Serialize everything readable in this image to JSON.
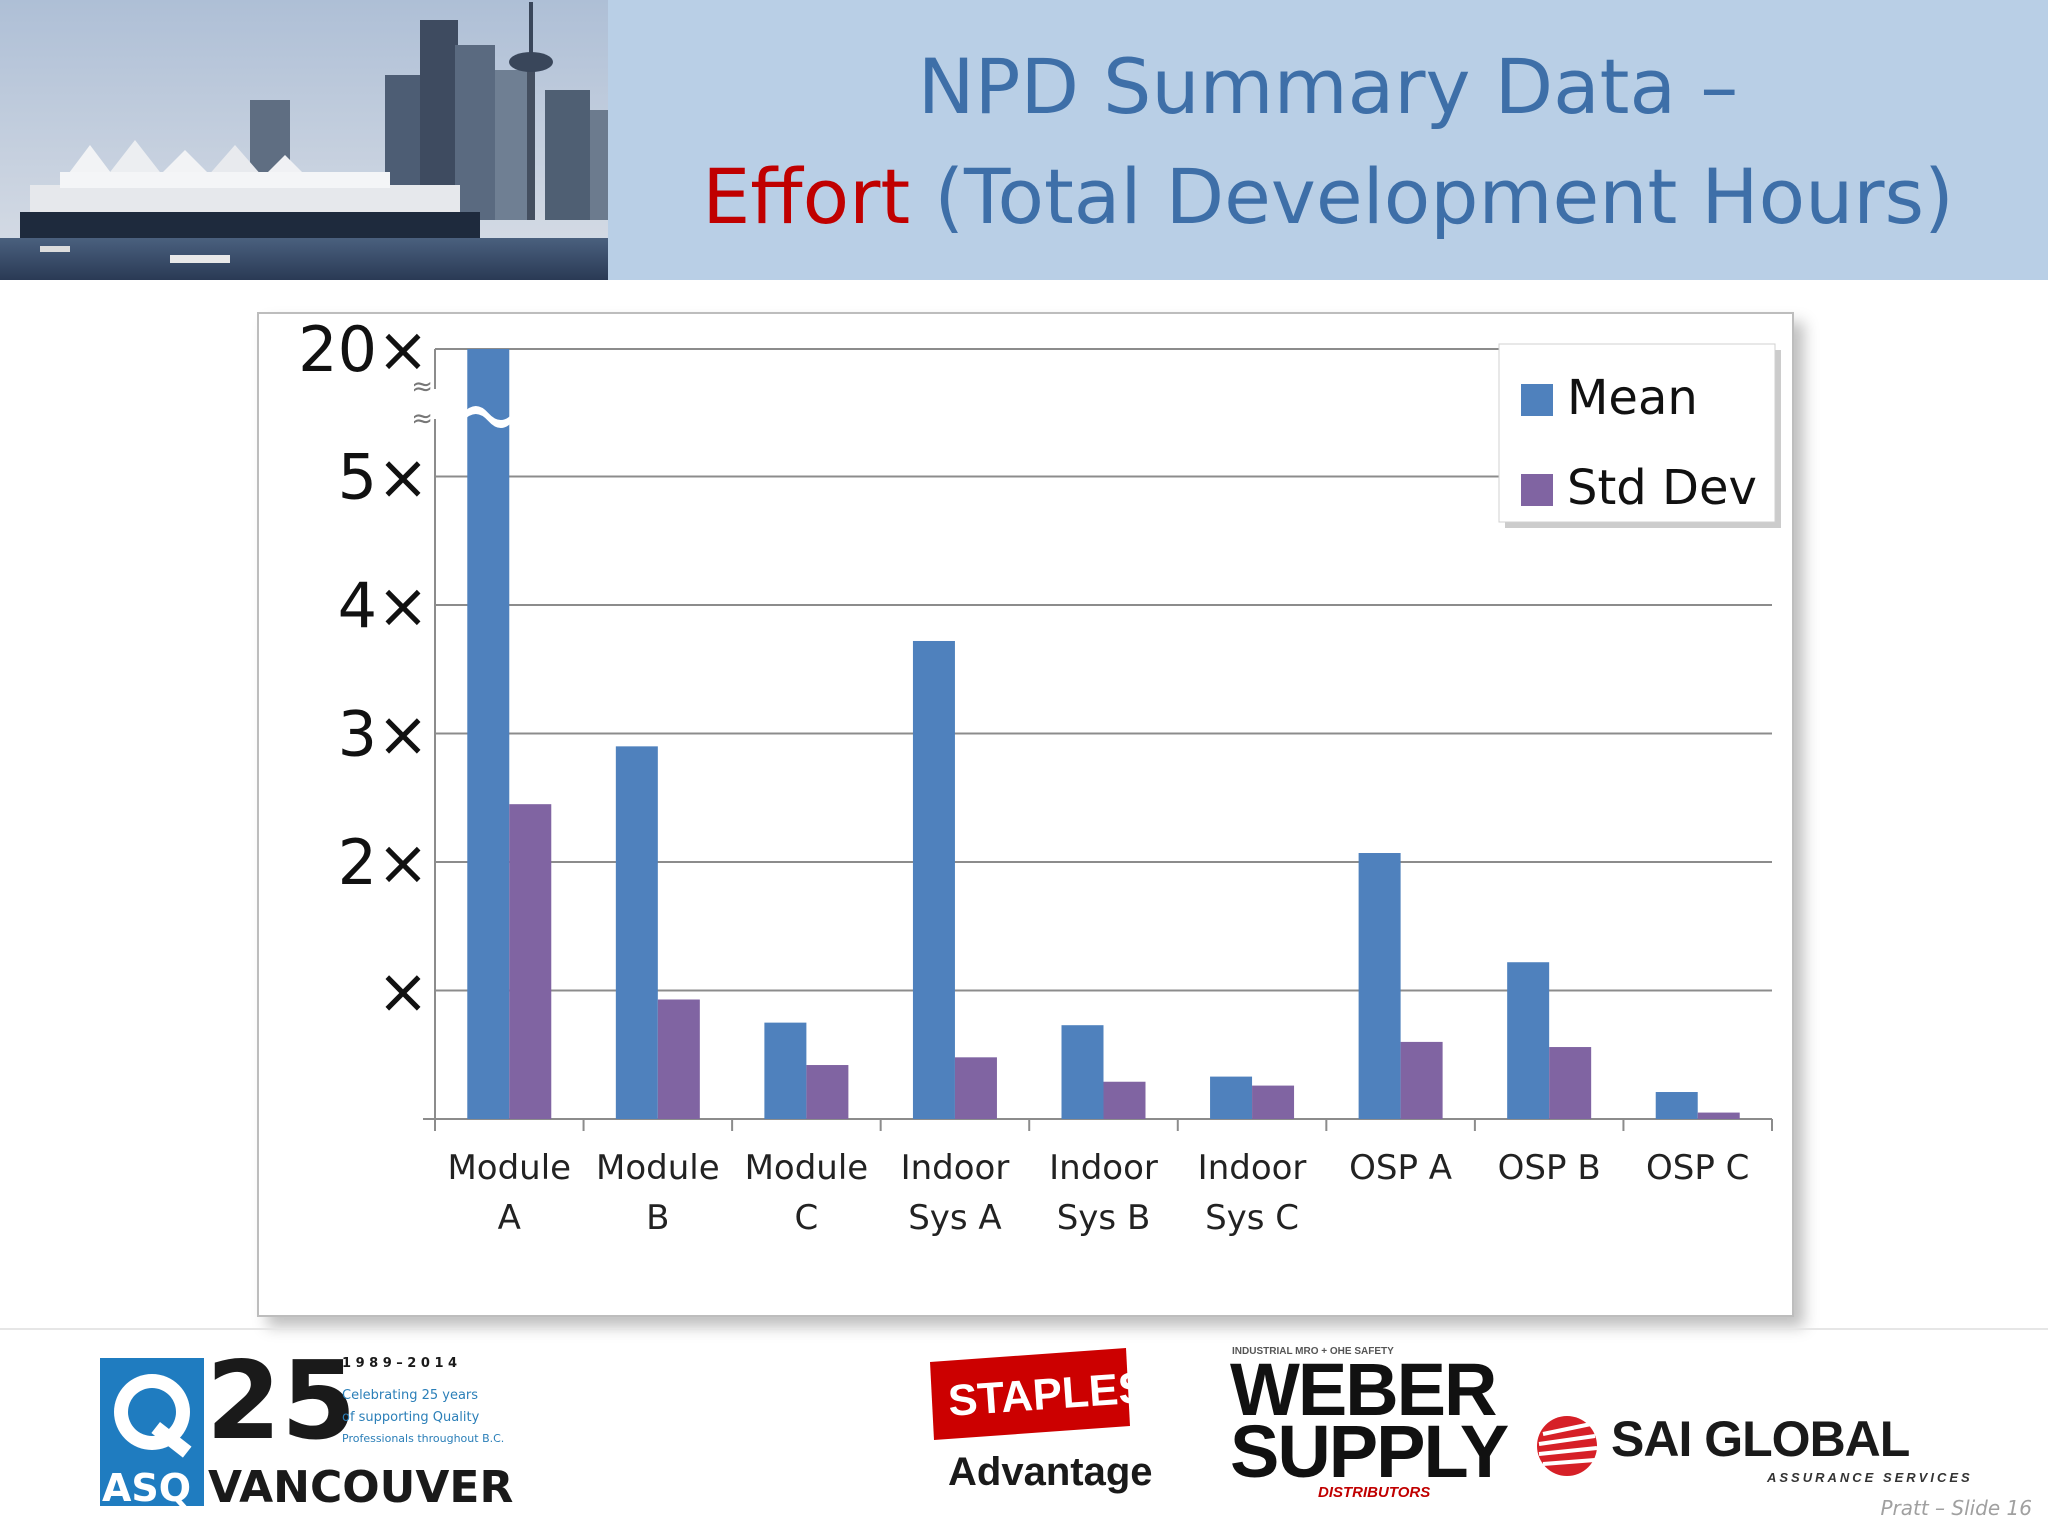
{
  "header": {
    "title_line1": "NPD Summary Data –",
    "title_accent": "Effort",
    "title_rest": " (Total Development Hours)"
  },
  "chart_data": {
    "type": "bar",
    "categories": [
      [
        "Module",
        "A"
      ],
      [
        "Module",
        "B"
      ],
      [
        "Module",
        "C"
      ],
      [
        "Indoor",
        "Sys A"
      ],
      [
        "Indoor",
        "Sys B"
      ],
      [
        "Indoor",
        "Sys C"
      ],
      [
        "OSP A"
      ],
      [
        "OSP B"
      ],
      [
        "OSP C"
      ]
    ],
    "series": [
      {
        "name": "Mean",
        "color": "#4f81bd",
        "values": [
          20,
          2.9,
          0.75,
          3.72,
          0.73,
          0.33,
          2.07,
          1.22,
          0.21
        ]
      },
      {
        "name": "Std Dev",
        "color": "#8064a2",
        "values": [
          2.45,
          0.93,
          0.42,
          0.48,
          0.29,
          0.26,
          0.6,
          0.56,
          0.05
        ]
      }
    ],
    "y_ticks": [
      {
        "value": 1,
        "label": "×"
      },
      {
        "value": 2,
        "label": "2×"
      },
      {
        "value": 3,
        "label": "3×"
      },
      {
        "value": 4,
        "label": "4×"
      },
      {
        "value": 5,
        "label": "5×"
      },
      {
        "value": 20,
        "label": "20×"
      }
    ],
    "axis_break": {
      "from": 5,
      "to": 20,
      "symbol": "≈"
    },
    "ylim": [
      0,
      20
    ],
    "grid": true,
    "legend": "top-right"
  },
  "footer": {
    "asq": {
      "q_letter": "Q",
      "number": "25",
      "asq_label": "ASQ",
      "city": "VANCOUVER",
      "years": "1 9 8 9 – 2 0 1 4",
      "line1": "Celebrating 25 years",
      "line2": "of supporting Quality",
      "line3": "Professionals throughout B.C."
    },
    "staples": {
      "brand": "STAPLES",
      "sub": "Advantage"
    },
    "weber": {
      "top": "INDUSTRIAL MRO + OHE SAFETY",
      "line1": "WEBER",
      "line2": "SUPPLY",
      "bottom": "DISTRIBUTORS"
    },
    "sai": {
      "name": "SAI GLOBAL",
      "sub": "ASSURANCE SERVICES"
    },
    "slide_number": "Pratt – Slide 16"
  }
}
